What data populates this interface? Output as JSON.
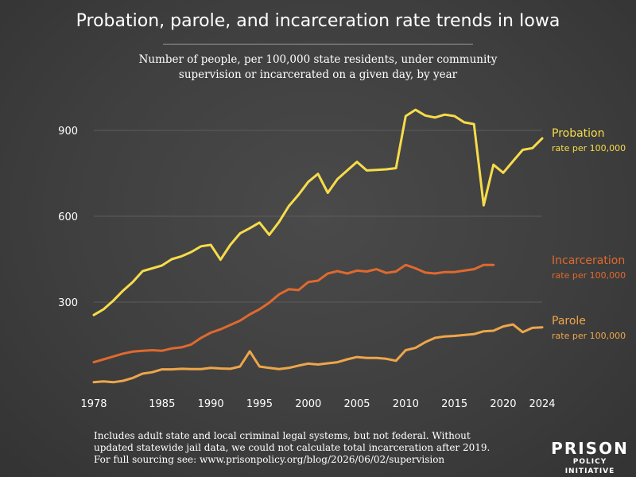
{
  "header": {
    "title": "Probation, parole, and incarceration rate trends in Iowa",
    "subtitle_line1": "Number of people, per 100,000 state residents, under community",
    "subtitle_line2": "supervision or incarcerated on a given day, by year"
  },
  "footnote": {
    "line1": "Includes adult state and local criminal legal systems, but not federal. Without",
    "line2": "updated statewide jail data, we could not calculate total incarceration after 2019.",
    "line3": "For full sourcing see: www.prisonpolicy.org/blog/2026/06/02/supervision"
  },
  "logo": {
    "line1": "PRISON",
    "line2": "POLICY INITIATIVE"
  },
  "colors": {
    "probation": "#f7dc4a",
    "incarceration": "#e0692e",
    "parole": "#eea64a",
    "grid": "#5c5c5c"
  },
  "chart_data": {
    "type": "line",
    "xlim": [
      1978,
      2024
    ],
    "ylim": [
      0,
      1000
    ],
    "grid": true,
    "x_ticks": [
      1978,
      1985,
      1990,
      1995,
      2000,
      2005,
      2010,
      2015,
      2020,
      2024
    ],
    "x_tick_labels": [
      "1978",
      "1985",
      "1990",
      "1995",
      "2000",
      "2005",
      "2010",
      "2015",
      "2020",
      "2024"
    ],
    "y_ticks": [
      300,
      600,
      900
    ],
    "y_tick_labels": [
      "300",
      "600",
      "900"
    ],
    "series": [
      {
        "name": "Probation",
        "sublabel": "rate per 100,000",
        "color_key": "probation",
        "x": [
          1978,
          1979,
          1980,
          1981,
          1982,
          1983,
          1984,
          1985,
          1986,
          1987,
          1988,
          1989,
          1990,
          1991,
          1992,
          1993,
          1994,
          1995,
          1996,
          1997,
          1998,
          1999,
          2000,
          2001,
          2002,
          2003,
          2004,
          2005,
          2006,
          2007,
          2008,
          2009,
          2010,
          2011,
          2012,
          2013,
          2014,
          2015,
          2016,
          2017,
          2018,
          2019,
          2020,
          2021,
          2022,
          2023,
          2024
        ],
        "values": [
          255,
          275,
          305,
          340,
          370,
          408,
          418,
          428,
          450,
          460,
          475,
          495,
          500,
          448,
          500,
          540,
          558,
          578,
          535,
          580,
          635,
          675,
          720,
          748,
          682,
          730,
          760,
          790,
          760,
          762,
          764,
          768,
          950,
          972,
          952,
          945,
          955,
          950,
          928,
          922,
          638,
          780,
          752,
          792,
          832,
          838,
          872
        ]
      },
      {
        "name": "Incarceration",
        "sublabel": "rate per 100,000",
        "color_key": "incarceration",
        "x": [
          1978,
          1979,
          1980,
          1981,
          1982,
          1983,
          1984,
          1985,
          1986,
          1987,
          1988,
          1989,
          1990,
          1991,
          1992,
          1993,
          1994,
          1995,
          1996,
          1997,
          1998,
          1999,
          2000,
          2001,
          2002,
          2003,
          2004,
          2005,
          2006,
          2007,
          2008,
          2009,
          2010,
          2011,
          2012,
          2013,
          2014,
          2015,
          2016,
          2017,
          2018,
          2019
        ],
        "values": [
          90,
          100,
          110,
          120,
          127,
          130,
          132,
          130,
          138,
          142,
          152,
          175,
          193,
          205,
          220,
          235,
          257,
          275,
          298,
          327,
          345,
          342,
          370,
          375,
          400,
          408,
          400,
          410,
          407,
          415,
          402,
          407,
          430,
          418,
          403,
          400,
          405,
          405,
          410,
          415,
          430,
          430
        ]
      },
      {
        "name": "Parole",
        "sublabel": "rate per 100,000",
        "color_key": "parole",
        "x": [
          1978,
          1979,
          1980,
          1981,
          1982,
          1983,
          1984,
          1985,
          1986,
          1987,
          1988,
          1989,
          1990,
          1991,
          1992,
          1993,
          1994,
          1995,
          1996,
          1997,
          1998,
          1999,
          2000,
          2001,
          2002,
          2003,
          2004,
          2005,
          2006,
          2007,
          2008,
          2009,
          2010,
          2011,
          2012,
          2013,
          2014,
          2015,
          2016,
          2017,
          2018,
          2019,
          2020,
          2021,
          2022,
          2023,
          2024
        ],
        "values": [
          20,
          23,
          20,
          25,
          35,
          50,
          55,
          65,
          65,
          67,
          66,
          66,
          70,
          68,
          67,
          75,
          128,
          75,
          70,
          66,
          70,
          78,
          85,
          82,
          86,
          90,
          100,
          108,
          105,
          105,
          102,
          95,
          132,
          140,
          160,
          175,
          180,
          182,
          185,
          188,
          198,
          200,
          215,
          222,
          195,
          210,
          212
        ]
      }
    ]
  }
}
